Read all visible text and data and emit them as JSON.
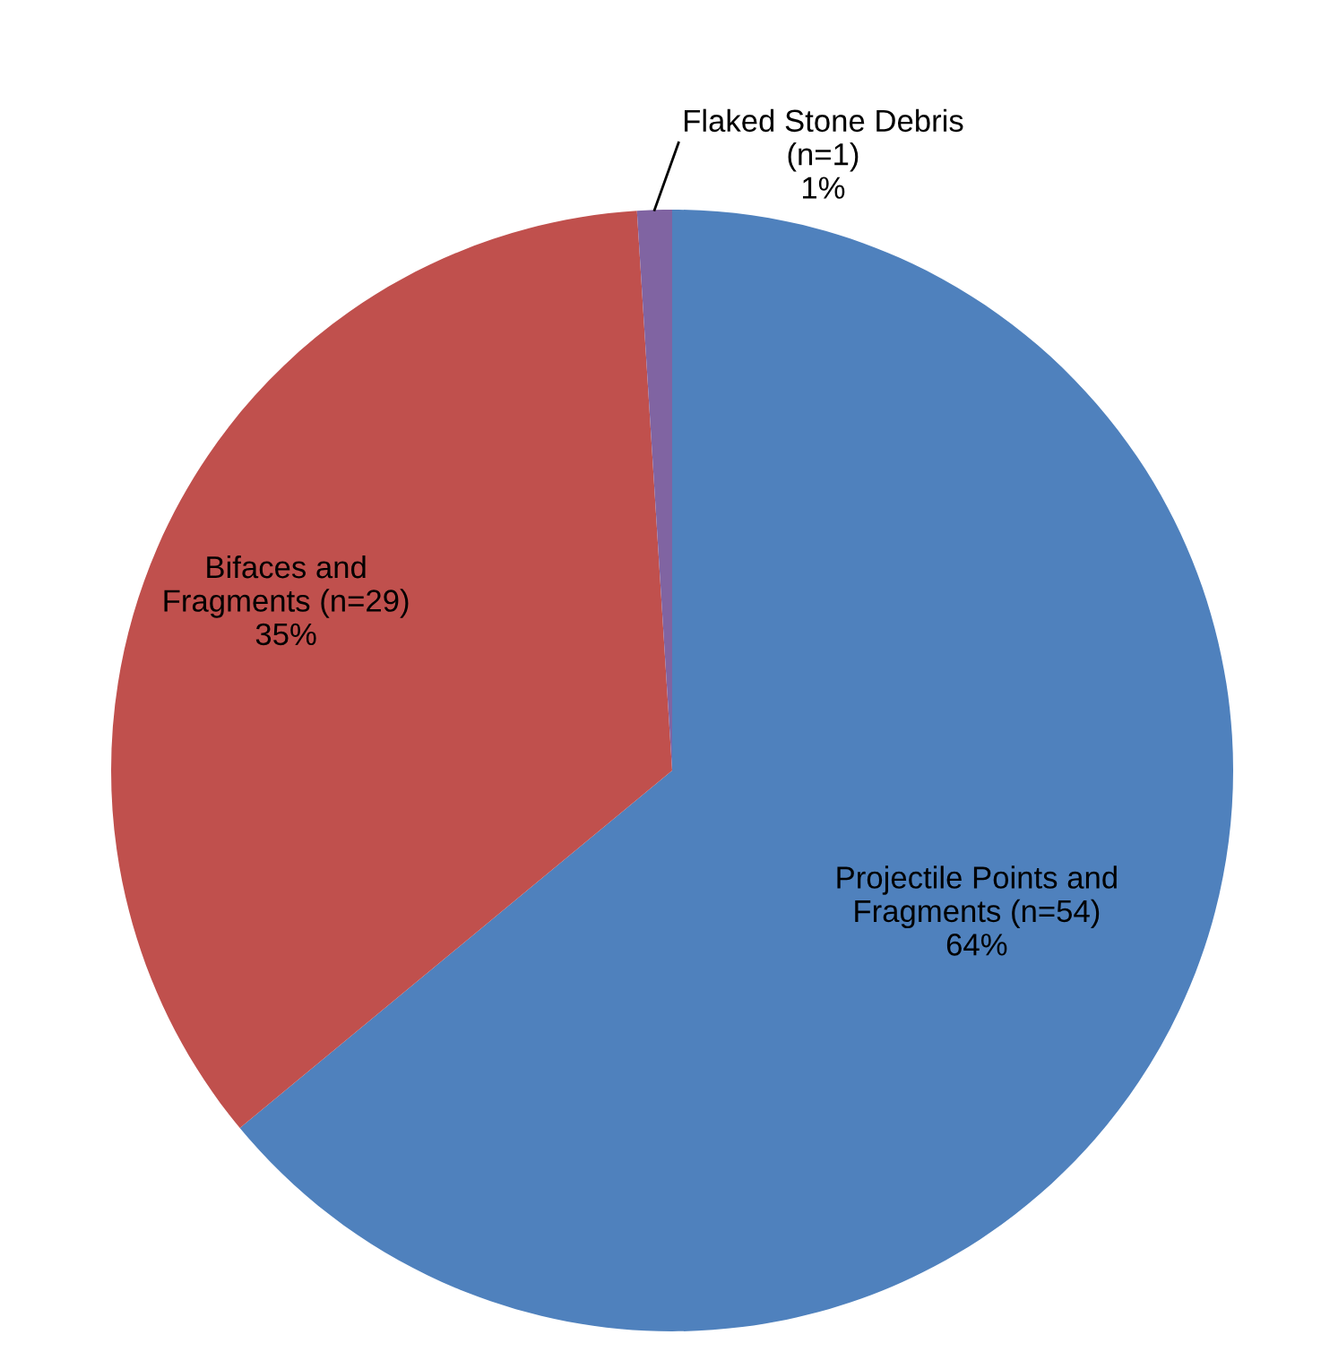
{
  "chart_data": {
    "type": "pie",
    "categories": [
      "Projectile Points and\nFragments (n=54)",
      "Bifaces and\nFragments (n=29)",
      "Flaked Stone Debris\n(n=1)"
    ],
    "values": [
      64,
      35,
      1
    ],
    "colors": [
      "#4f81bd",
      "#c0504d",
      "#8064a2"
    ],
    "value_labels": [
      "64%",
      "35%",
      "1%"
    ],
    "legend": false
  }
}
